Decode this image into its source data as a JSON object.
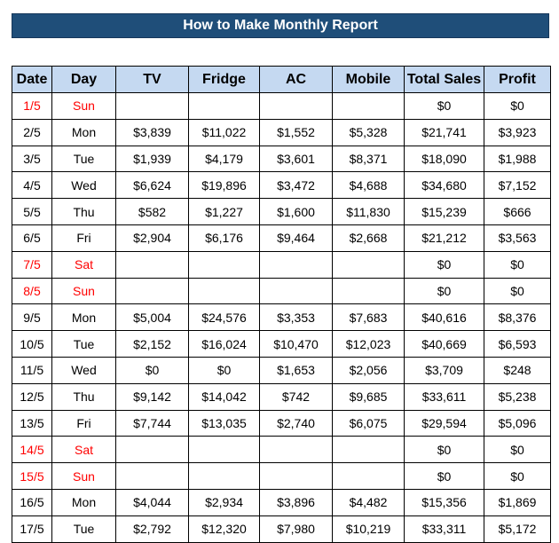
{
  "title": "How to Make Monthly Report",
  "colors": {
    "title_bg": "#1f4e79",
    "title_text": "#ffffff",
    "header_bg": "#c5d9f1",
    "weekend_text": "#ff0000"
  },
  "columns": [
    "Date",
    "Day",
    "TV",
    "Fridge",
    "AC",
    "Mobile",
    "Total Sales",
    "Profit"
  ],
  "rows": [
    {
      "date": "1/5",
      "day": "Sun",
      "tv": "",
      "fridge": "",
      "ac": "",
      "mobile": "",
      "total": "$0",
      "profit": "$0",
      "weekend": true
    },
    {
      "date": "2/5",
      "day": "Mon",
      "tv": "$3,839",
      "fridge": "$11,022",
      "ac": "$1,552",
      "mobile": "$5,328",
      "total": "$21,741",
      "profit": "$3,923",
      "weekend": false
    },
    {
      "date": "3/5",
      "day": "Tue",
      "tv": "$1,939",
      "fridge": "$4,179",
      "ac": "$3,601",
      "mobile": "$8,371",
      "total": "$18,090",
      "profit": "$1,988",
      "weekend": false
    },
    {
      "date": "4/5",
      "day": "Wed",
      "tv": "$6,624",
      "fridge": "$19,896",
      "ac": "$3,472",
      "mobile": "$4,688",
      "total": "$34,680",
      "profit": "$7,152",
      "weekend": false
    },
    {
      "date": "5/5",
      "day": "Thu",
      "tv": "$582",
      "fridge": "$1,227",
      "ac": "$1,600",
      "mobile": "$11,830",
      "total": "$15,239",
      "profit": "$666",
      "weekend": false
    },
    {
      "date": "6/5",
      "day": "Fri",
      "tv": "$2,904",
      "fridge": "$6,176",
      "ac": "$9,464",
      "mobile": "$2,668",
      "total": "$21,212",
      "profit": "$3,563",
      "weekend": false
    },
    {
      "date": "7/5",
      "day": "Sat",
      "tv": "",
      "fridge": "",
      "ac": "",
      "mobile": "",
      "total": "$0",
      "profit": "$0",
      "weekend": true
    },
    {
      "date": "8/5",
      "day": "Sun",
      "tv": "",
      "fridge": "",
      "ac": "",
      "mobile": "",
      "total": "$0",
      "profit": "$0",
      "weekend": true
    },
    {
      "date": "9/5",
      "day": "Mon",
      "tv": "$5,004",
      "fridge": "$24,576",
      "ac": "$3,353",
      "mobile": "$7,683",
      "total": "$40,616",
      "profit": "$8,376",
      "weekend": false
    },
    {
      "date": "10/5",
      "day": "Tue",
      "tv": "$2,152",
      "fridge": "$16,024",
      "ac": "$10,470",
      "mobile": "$12,023",
      "total": "$40,669",
      "profit": "$6,593",
      "weekend": false
    },
    {
      "date": "11/5",
      "day": "Wed",
      "tv": "$0",
      "fridge": "$0",
      "ac": "$1,653",
      "mobile": "$2,056",
      "total": "$3,709",
      "profit": "$248",
      "weekend": false
    },
    {
      "date": "12/5",
      "day": "Thu",
      "tv": "$9,142",
      "fridge": "$14,042",
      "ac": "$742",
      "mobile": "$9,685",
      "total": "$33,611",
      "profit": "$5,238",
      "weekend": false
    },
    {
      "date": "13/5",
      "day": "Fri",
      "tv": "$7,744",
      "fridge": "$13,035",
      "ac": "$2,740",
      "mobile": "$6,075",
      "total": "$29,594",
      "profit": "$5,096",
      "weekend": false
    },
    {
      "date": "14/5",
      "day": "Sat",
      "tv": "",
      "fridge": "",
      "ac": "",
      "mobile": "",
      "total": "$0",
      "profit": "$0",
      "weekend": true
    },
    {
      "date": "15/5",
      "day": "Sun",
      "tv": "",
      "fridge": "",
      "ac": "",
      "mobile": "",
      "total": "$0",
      "profit": "$0",
      "weekend": true
    },
    {
      "date": "16/5",
      "day": "Mon",
      "tv": "$4,044",
      "fridge": "$2,934",
      "ac": "$3,896",
      "mobile": "$4,482",
      "total": "$15,356",
      "profit": "$1,869",
      "weekend": false
    },
    {
      "date": "17/5",
      "day": "Tue",
      "tv": "$2,792",
      "fridge": "$12,320",
      "ac": "$7,980",
      "mobile": "$10,219",
      "total": "$33,311",
      "profit": "$5,172",
      "weekend": false
    }
  ]
}
